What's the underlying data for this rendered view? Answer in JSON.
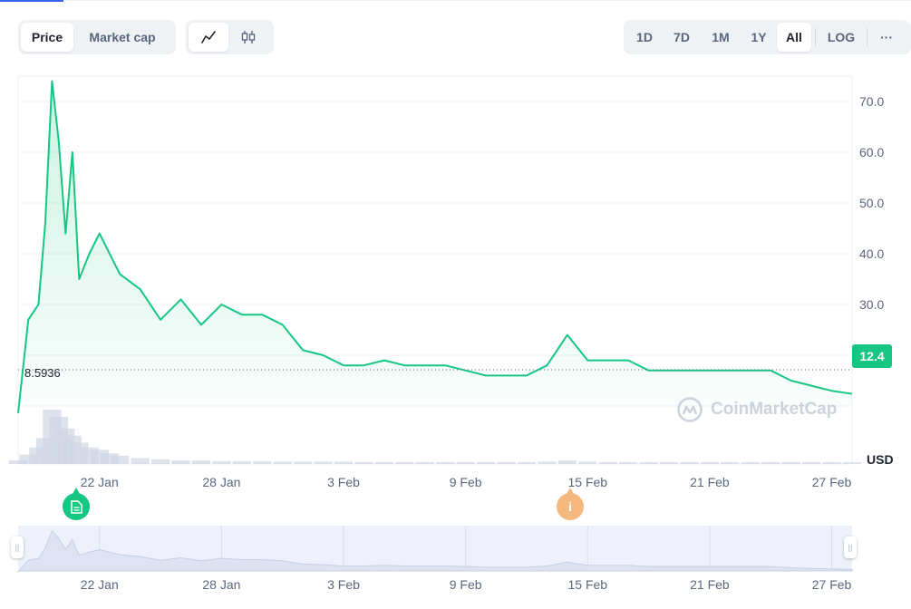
{
  "tabs": {
    "metric": [
      "Price",
      "Market cap"
    ],
    "metric_active": "Price",
    "chart_type_icons": [
      "line-chart-icon",
      "candlestick-icon"
    ],
    "ranges": [
      "1D",
      "7D",
      "1M",
      "1Y",
      "All"
    ],
    "range_active": "All",
    "log_label": "LOG",
    "more_label": "···"
  },
  "colors": {
    "line": "#16c784",
    "grid": "#eff2f5",
    "text": "#58667e",
    "volume": "#cfd6e4",
    "info_marker": "#f5b97f"
  },
  "chart_data": {
    "type": "area",
    "y_ticks": [
      "20.0",
      "30.0",
      "40.0",
      "50.0",
      "60.0",
      "70.0"
    ],
    "ylim": [
      10,
      75
    ],
    "x_ticks": [
      "22 Jan",
      "28 Jan",
      "3 Feb",
      "9 Feb",
      "15 Feb",
      "21 Feb",
      "27 Feb"
    ],
    "x": [
      "18 Jan",
      "18 Jan",
      "19 Jan",
      "19 Jan",
      "19 Jan",
      "20 Jan",
      "20 Jan",
      "20 Jan",
      "21 Jan",
      "21 Jan",
      "22 Jan",
      "22 Jan",
      "23 Jan",
      "24 Jan",
      "25 Jan",
      "26 Jan",
      "27 Jan",
      "28 Jan",
      "29 Jan",
      "30 Jan",
      "31 Jan",
      "1 Feb",
      "2 Feb",
      "3 Feb",
      "4 Feb",
      "5 Feb",
      "6 Feb",
      "7 Feb",
      "8 Feb",
      "9 Feb",
      "10 Feb",
      "11 Feb",
      "12 Feb",
      "13 Feb",
      "14 Feb",
      "15 Feb",
      "16 Feb",
      "17 Feb",
      "18 Feb",
      "19 Feb",
      "20 Feb",
      "21 Feb",
      "22 Feb",
      "23 Feb",
      "24 Feb",
      "25 Feb",
      "26 Feb",
      "27 Feb",
      "28 Feb"
    ],
    "values": [
      8.6,
      27,
      30,
      46,
      74,
      62,
      44,
      60,
      35,
      40,
      44,
      40,
      36,
      33,
      27,
      31,
      26,
      30,
      28,
      28,
      26,
      21,
      20,
      18,
      18,
      19,
      18,
      18,
      18,
      17,
      16,
      16,
      16,
      18,
      24,
      19,
      19,
      19,
      17,
      17,
      17,
      17,
      17,
      17,
      17,
      15,
      14,
      13,
      12.4
    ],
    "volume": [
      3,
      8,
      14,
      22,
      46,
      40,
      30,
      24,
      18,
      14,
      12,
      9,
      7,
      5,
      4,
      3,
      3,
      2.5,
      2.5,
      2.5,
      2,
      2,
      2,
      2,
      1.5,
      1.5,
      1.5,
      1.5,
      1.5,
      1.5,
      1.5,
      1.5,
      1.5,
      2,
      3,
      2,
      1.5,
      1.5,
      1.5,
      1.5,
      1.5,
      1.5,
      1.5,
      1.5,
      1.5,
      1.5,
      1.5,
      1.5,
      1.5
    ],
    "current_price": "12.4",
    "min_price": "8.5936",
    "currency": "USD",
    "grid": true
  },
  "watermark": "CoinMarketCap",
  "markers": {
    "news_icon": "document-icon",
    "info_label": "i"
  }
}
